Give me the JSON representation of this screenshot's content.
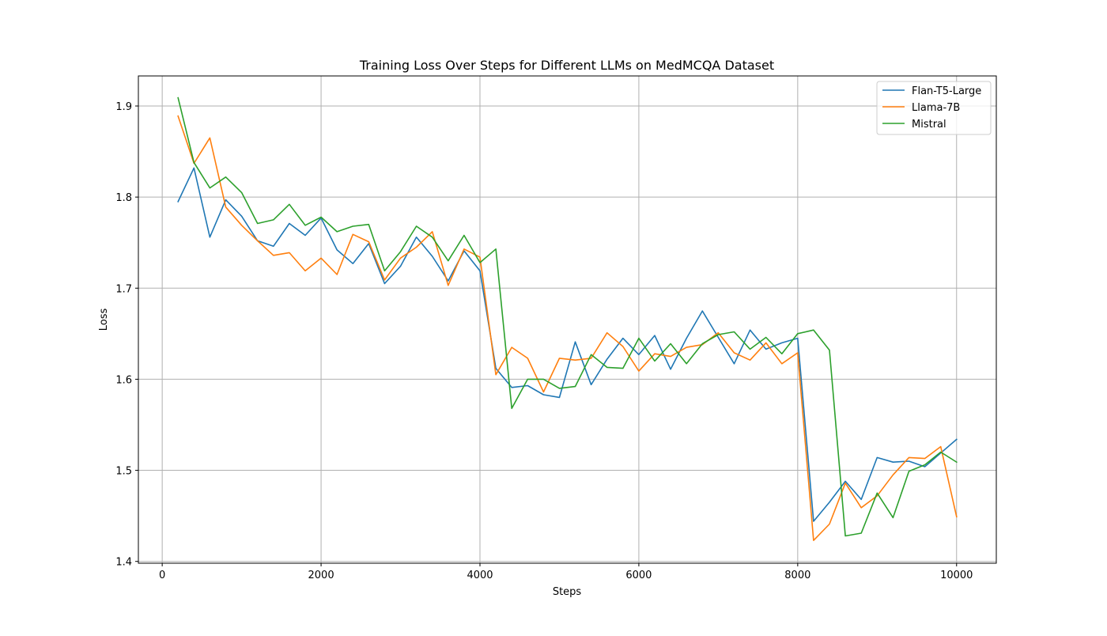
{
  "chart_data": {
    "type": "line",
    "title": "Training Loss Over Steps for Different LLMs on MedMCQA Dataset",
    "xlabel": "Steps",
    "ylabel": "Loss",
    "xlim": [
      -300,
      10500
    ],
    "ylim": [
      1.398,
      1.933
    ],
    "xticks": [
      0,
      2000,
      4000,
      6000,
      8000,
      10000
    ],
    "yticks": [
      1.4,
      1.5,
      1.6,
      1.7,
      1.8,
      1.9
    ],
    "xtick_labels": [
      "0",
      "2000",
      "4000",
      "6000",
      "8000",
      "10000"
    ],
    "ytick_labels": [
      "1.4",
      "1.5",
      "1.6",
      "1.7",
      "1.8",
      "1.9"
    ],
    "grid": true,
    "legend_position": "top-right",
    "x": [
      200,
      400,
      600,
      800,
      1000,
      1200,
      1400,
      1600,
      1800,
      2000,
      2200,
      2400,
      2600,
      2800,
      3000,
      3200,
      3400,
      3600,
      3800,
      4000,
      4200,
      4400,
      4600,
      4800,
      5000,
      5200,
      5400,
      5600,
      5800,
      6000,
      6200,
      6400,
      6600,
      6800,
      7000,
      7200,
      7400,
      7600,
      7800,
      8000,
      8200,
      8400,
      8600,
      8800,
      9000,
      9200,
      9400,
      9600,
      9800,
      10000
    ],
    "series": [
      {
        "name": "Flan-T5-Large",
        "color": "#1f77b4",
        "values": [
          1.795,
          1.832,
          1.756,
          1.797,
          1.779,
          1.752,
          1.746,
          1.771,
          1.758,
          1.777,
          1.742,
          1.727,
          1.749,
          1.705,
          1.724,
          1.756,
          1.735,
          1.708,
          1.741,
          1.719,
          1.612,
          1.591,
          1.593,
          1.583,
          1.58,
          1.641,
          1.594,
          1.622,
          1.645,
          1.627,
          1.648,
          1.611,
          1.645,
          1.675,
          1.646,
          1.617,
          1.654,
          1.633,
          1.64,
          1.645,
          1.444,
          1.465,
          1.488,
          1.468,
          1.514,
          1.509,
          1.51,
          1.504,
          1.519,
          1.534
        ]
      },
      {
        "name": "Llama-7B",
        "color": "#ff7f0e",
        "values": [
          1.889,
          1.837,
          1.865,
          1.789,
          1.769,
          1.752,
          1.736,
          1.739,
          1.719,
          1.733,
          1.715,
          1.759,
          1.751,
          1.709,
          1.733,
          1.745,
          1.762,
          1.703,
          1.743,
          1.734,
          1.605,
          1.635,
          1.623,
          1.586,
          1.623,
          1.621,
          1.623,
          1.651,
          1.636,
          1.609,
          1.628,
          1.625,
          1.635,
          1.638,
          1.651,
          1.629,
          1.621,
          1.64,
          1.617,
          1.629,
          1.423,
          1.441,
          1.486,
          1.459,
          1.472,
          1.495,
          1.514,
          1.513,
          1.526,
          1.449
        ]
      },
      {
        "name": "Mistral",
        "color": "#2ca02c",
        "values": [
          1.909,
          1.838,
          1.81,
          1.822,
          1.805,
          1.771,
          1.775,
          1.792,
          1.769,
          1.778,
          1.762,
          1.768,
          1.77,
          1.719,
          1.74,
          1.768,
          1.756,
          1.73,
          1.758,
          1.728,
          1.743,
          1.568,
          1.6,
          1.6,
          1.59,
          1.592,
          1.627,
          1.613,
          1.612,
          1.645,
          1.62,
          1.639,
          1.617,
          1.639,
          1.649,
          1.652,
          1.633,
          1.646,
          1.628,
          1.65,
          1.654,
          1.632,
          1.428,
          1.431,
          1.475,
          1.448,
          1.499,
          1.506,
          1.52,
          1.509
        ]
      }
    ]
  }
}
